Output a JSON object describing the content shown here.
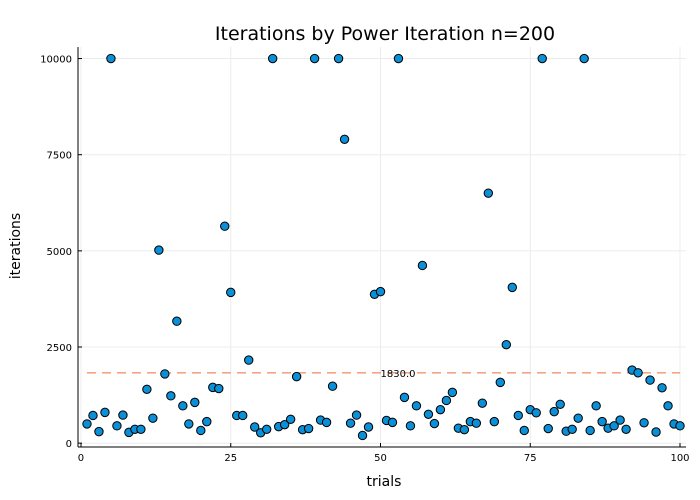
{
  "chart_data": {
    "type": "scatter",
    "title": "Iterations by Power Iteration  n=200",
    "xlabel": "trials",
    "ylabel": "iterations",
    "xlim": [
      -0.5,
      101
    ],
    "ylim": [
      -100,
      10300
    ],
    "xticks": [
      0,
      25,
      50,
      75,
      100
    ],
    "yticks": [
      0,
      2500,
      5000,
      7500,
      10000
    ],
    "grid": true,
    "marker_color": "#0b8fd6",
    "reference_line": {
      "value": 1830.0,
      "label": "1830.0",
      "label_x": 50,
      "color": "#f4a582"
    },
    "x": [
      1,
      2,
      3,
      4,
      5,
      6,
      7,
      8,
      9,
      10,
      11,
      12,
      13,
      14,
      15,
      16,
      17,
      18,
      19,
      20,
      21,
      22,
      23,
      24,
      25,
      26,
      27,
      28,
      29,
      30,
      31,
      32,
      33,
      34,
      35,
      36,
      37,
      38,
      39,
      40,
      41,
      42,
      43,
      44,
      45,
      46,
      47,
      48,
      49,
      50,
      51,
      52,
      53,
      54,
      55,
      56,
      57,
      58,
      59,
      60,
      61,
      62,
      63,
      64,
      65,
      66,
      67,
      68,
      69,
      70,
      71,
      72,
      73,
      74,
      75,
      76,
      77,
      78,
      79,
      80,
      81,
      82,
      83,
      84,
      85,
      86,
      87,
      88,
      89,
      90,
      91,
      92,
      93,
      94,
      95,
      96,
      97,
      98,
      99,
      100
    ],
    "y": [
      500,
      720,
      300,
      800,
      10000,
      450,
      730,
      280,
      360,
      360,
      1400,
      650,
      5020,
      1800,
      1230,
      3170,
      970,
      500,
      1060,
      330,
      560,
      1450,
      1420,
      5640,
      3920,
      720,
      720,
      2160,
      420,
      270,
      360,
      10000,
      430,
      480,
      620,
      1730,
      350,
      380,
      10000,
      600,
      540,
      1480,
      10000,
      7900,
      520,
      730,
      200,
      420,
      3870,
      3940,
      590,
      540,
      10000,
      1190,
      450,
      970,
      4620,
      750,
      510,
      870,
      1110,
      1320,
      390,
      350,
      560,
      520,
      1040,
      6500,
      560,
      1580,
      2560,
      4050,
      720,
      330,
      870,
      790,
      10000,
      380,
      820,
      1010,
      310,
      360,
      650,
      10000,
      330,
      970,
      560,
      390,
      450,
      600,
      360,
      1900,
      1830,
      530,
      1640,
      290,
      1440,
      970,
      500,
      450
    ]
  }
}
